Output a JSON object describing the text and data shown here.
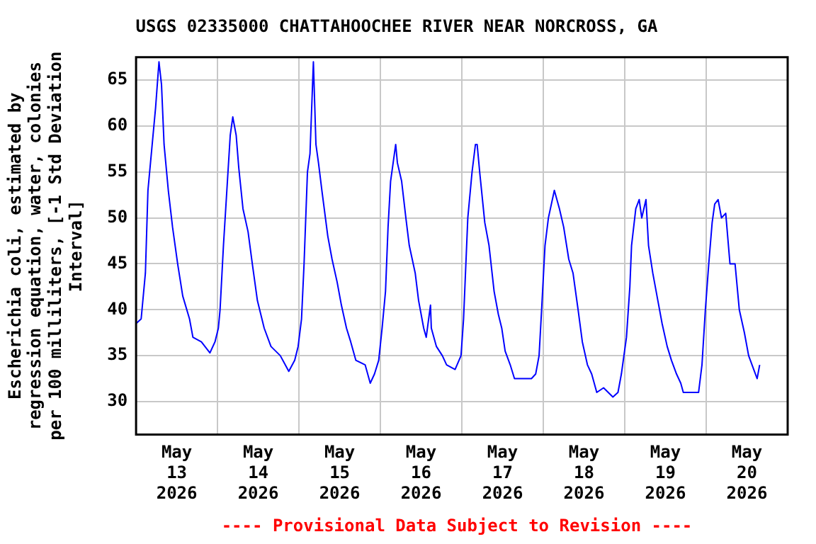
{
  "chart_data": {
    "type": "line",
    "title": "USGS 02335000 CHATTAHOOCHEE RIVER NEAR NORCROSS, GA",
    "ylabel": "Escherichia coli, estimated by regression equation, water, colonies per 100 milliliters, [-1 Std Deviation Interval]",
    "annotations": [
      "---- Provisional Data Subject to Revision ----"
    ],
    "xlim": [
      "2026-05-13",
      "2026-05-21"
    ],
    "xticks": [
      {
        "value": "2026-05-13",
        "label": null
      },
      {
        "value": "2026-05-13T12:00",
        "label": "May\n13\n2026"
      },
      {
        "value": "2026-05-14",
        "label": null
      },
      {
        "value": "2026-05-14T12:00",
        "label": "May\n14\n2026"
      },
      {
        "value": "2026-05-15",
        "label": null
      },
      {
        "value": "2026-05-15T12:00",
        "label": "May\n15\n2026"
      },
      {
        "value": "2026-05-16",
        "label": null
      },
      {
        "value": "2026-05-16T12:00",
        "label": "May\n16\n2026"
      },
      {
        "value": "2026-05-17",
        "label": null
      },
      {
        "value": "2026-05-17T12:00",
        "label": "May\n17\n2026"
      },
      {
        "value": "2026-05-18",
        "label": null
      },
      {
        "value": "2026-05-18T12:00",
        "label": "May\n18\n2026"
      },
      {
        "value": "2026-05-19",
        "label": null
      },
      {
        "value": "2026-05-19T12:00",
        "label": "May\n19\n2026"
      },
      {
        "value": "2026-05-20",
        "label": null
      },
      {
        "value": "2026-05-20T12:00",
        "label": "May\n20\n2026"
      },
      {
        "value": "2026-05-21",
        "label": null
      }
    ],
    "ylim": [
      26.4,
      67.5
    ],
    "yticks": [
      30,
      35,
      40,
      45,
      50,
      55,
      60,
      65
    ],
    "grid": true,
    "legend": false,
    "marker": "none",
    "line_style": "solid",
    "series": [
      {
        "color": "#0000ff",
        "x": [
          "2026-05-13T00:00",
          "2026-05-13T01:30",
          "2026-05-13T02:45",
          "2026-05-13T03:30",
          "2026-05-13T04:45",
          "2026-05-13T05:45",
          "2026-05-13T06:45",
          "2026-05-13T07:30",
          "2026-05-13T08:15",
          "2026-05-13T09:30",
          "2026-05-13T10:45",
          "2026-05-13T12:15",
          "2026-05-13T13:45",
          "2026-05-13T15:45",
          "2026-05-13T16:45",
          "2026-05-13T19:15",
          "2026-05-13T21:45",
          "2026-05-13T23:15",
          "2026-05-14T00:15",
          "2026-05-14T00:45",
          "2026-05-14T01:45",
          "2026-05-14T02:45",
          "2026-05-14T03:45",
          "2026-05-14T04:30",
          "2026-05-14T05:30",
          "2026-05-14T06:15",
          "2026-05-14T07:30",
          "2026-05-14T09:00",
          "2026-05-14T10:15",
          "2026-05-14T11:45",
          "2026-05-14T13:45",
          "2026-05-14T15:45",
          "2026-05-14T18:30",
          "2026-05-14T21:00",
          "2026-05-14T22:45",
          "2026-05-14T23:45",
          "2026-05-15T00:45",
          "2026-05-15T01:30",
          "2026-05-15T02:30",
          "2026-05-15T03:15",
          "2026-05-15T04:15",
          "2026-05-15T05:00",
          "2026-05-15T05:45",
          "2026-05-15T06:45",
          "2026-05-15T08:30",
          "2026-05-15T09:45",
          "2026-05-15T11:15",
          "2026-05-15T12:30",
          "2026-05-15T14:00",
          "2026-05-15T15:15",
          "2026-05-15T16:45",
          "2026-05-15T19:30",
          "2026-05-15T21:00",
          "2026-05-15T22:15",
          "2026-05-15T23:30",
          "2026-05-16T00:30",
          "2026-05-16T01:30",
          "2026-05-16T02:15",
          "2026-05-16T03:00",
          "2026-05-16T04:30",
          "2026-05-16T05:00",
          "2026-05-16T06:15",
          "2026-05-16T07:30",
          "2026-05-16T08:30",
          "2026-05-16T10:15",
          "2026-05-16T11:15",
          "2026-05-16T12:45",
          "2026-05-16T13:30",
          "2026-05-16T14:45",
          "2026-05-16T15:00",
          "2026-05-16T16:30",
          "2026-05-16T18:15",
          "2026-05-16T19:30",
          "2026-05-16T22:00",
          "2026-05-16T23:45",
          "2026-05-17T00:30",
          "2026-05-17T01:45",
          "2026-05-17T03:00",
          "2026-05-17T04:00",
          "2026-05-17T04:30",
          "2026-05-17T05:15",
          "2026-05-17T06:45",
          "2026-05-17T08:00",
          "2026-05-17T09:30",
          "2026-05-17T10:45",
          "2026-05-17T11:45",
          "2026-05-17T12:45",
          "2026-05-17T14:15",
          "2026-05-17T15:30",
          "2026-05-17T18:15",
          "2026-05-17T20:30",
          "2026-05-17T21:45",
          "2026-05-17T22:45",
          "2026-05-17T23:30",
          "2026-05-18T00:30",
          "2026-05-18T01:30",
          "2026-05-18T03:15",
          "2026-05-18T04:45",
          "2026-05-18T06:00",
          "2026-05-18T07:30",
          "2026-05-18T08:45",
          "2026-05-18T10:15",
          "2026-05-18T11:30",
          "2026-05-18T13:00",
          "2026-05-18T14:15",
          "2026-05-18T15:45",
          "2026-05-18T17:45",
          "2026-05-18T20:30",
          "2026-05-18T22:00",
          "2026-05-18T23:00",
          "2026-05-19T00:30",
          "2026-05-19T01:30",
          "2026-05-19T02:00",
          "2026-05-19T03:15",
          "2026-05-19T04:15",
          "2026-05-19T05:00",
          "2026-05-19T06:15",
          "2026-05-19T07:00",
          "2026-05-19T08:15",
          "2026-05-19T09:45",
          "2026-05-19T11:00",
          "2026-05-19T12:30",
          "2026-05-19T13:45",
          "2026-05-19T15:15",
          "2026-05-19T16:30",
          "2026-05-19T17:15",
          "2026-05-19T19:15",
          "2026-05-19T21:45",
          "2026-05-19T22:45",
          "2026-05-19T23:45",
          "2026-05-20T00:45",
          "2026-05-20T01:45",
          "2026-05-20T02:30",
          "2026-05-20T03:30",
          "2026-05-20T04:30",
          "2026-05-20T05:45",
          "2026-05-20T07:00",
          "2026-05-20T08:30",
          "2026-05-20T09:45",
          "2026-05-20T11:15",
          "2026-05-20T12:30",
          "2026-05-20T14:00",
          "2026-05-20T15:00",
          "2026-05-20T15:45",
          "2026-05-20T16:00"
        ],
        "values": [
          38.5,
          39,
          44,
          53,
          58,
          62,
          67,
          64.5,
          58,
          53,
          49,
          45,
          41.5,
          39,
          37,
          36.5,
          35.3,
          36.5,
          38,
          40,
          47,
          53,
          59,
          61,
          59,
          55.5,
          51,
          48.5,
          45,
          41,
          38,
          36,
          35,
          33.3,
          34.5,
          36,
          39,
          45,
          55,
          57,
          67,
          58,
          56,
          53,
          48,
          45.5,
          43,
          40.5,
          38,
          36.5,
          34.5,
          34,
          32,
          33,
          34.5,
          38,
          42,
          49,
          54,
          58,
          56,
          54,
          50,
          47,
          44,
          41,
          38,
          37,
          40.5,
          38,
          36,
          35,
          34,
          33.5,
          35,
          39,
          50,
          55,
          58,
          58,
          55,
          49.5,
          47,
          42,
          39.5,
          38,
          35.5,
          34,
          32.5,
          32.5,
          32.5,
          33,
          35,
          40,
          47,
          50,
          53,
          51,
          49,
          45.5,
          44,
          40,
          36.5,
          34,
          33,
          31,
          31.5,
          30.5,
          31,
          33,
          37,
          42.5,
          47,
          51,
          52,
          50,
          52,
          47,
          44,
          41,
          38.5,
          36,
          34.5,
          33,
          32,
          31,
          31,
          31,
          34,
          40,
          45,
          49.5,
          51.5,
          52,
          50,
          50.5,
          45,
          45,
          40,
          37.5,
          35,
          33.5,
          32.5,
          34,
          34
        ]
      }
    ]
  }
}
